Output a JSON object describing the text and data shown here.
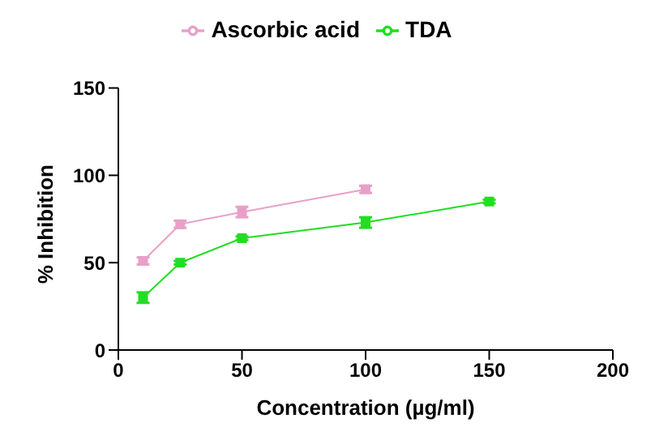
{
  "chart_data": {
    "type": "line",
    "xlabel": "Concentration (µg/ml)",
    "ylabel": "% Inhibition",
    "xlim": [
      0,
      200
    ],
    "xticks": [
      0,
      50,
      100,
      150,
      200
    ],
    "ylim": [
      0,
      150
    ],
    "yticks": [
      0,
      50,
      100,
      150
    ],
    "grid": false,
    "legend": "top",
    "marker": "square",
    "line_style": "solid",
    "series": [
      {
        "name": "Ascorbic acid",
        "color": "#e8a0c8",
        "x": [
          10,
          25,
          50,
          100
        ],
        "values": [
          51,
          72,
          79,
          92
        ],
        "errors": [
          2,
          2,
          3,
          2
        ]
      },
      {
        "name": "TDA",
        "color": "#22dd22",
        "x": [
          10,
          25,
          50,
          100,
          150
        ],
        "values": [
          30,
          50,
          64,
          73,
          85
        ],
        "errors": [
          3,
          1,
          1,
          3,
          1
        ]
      }
    ]
  }
}
